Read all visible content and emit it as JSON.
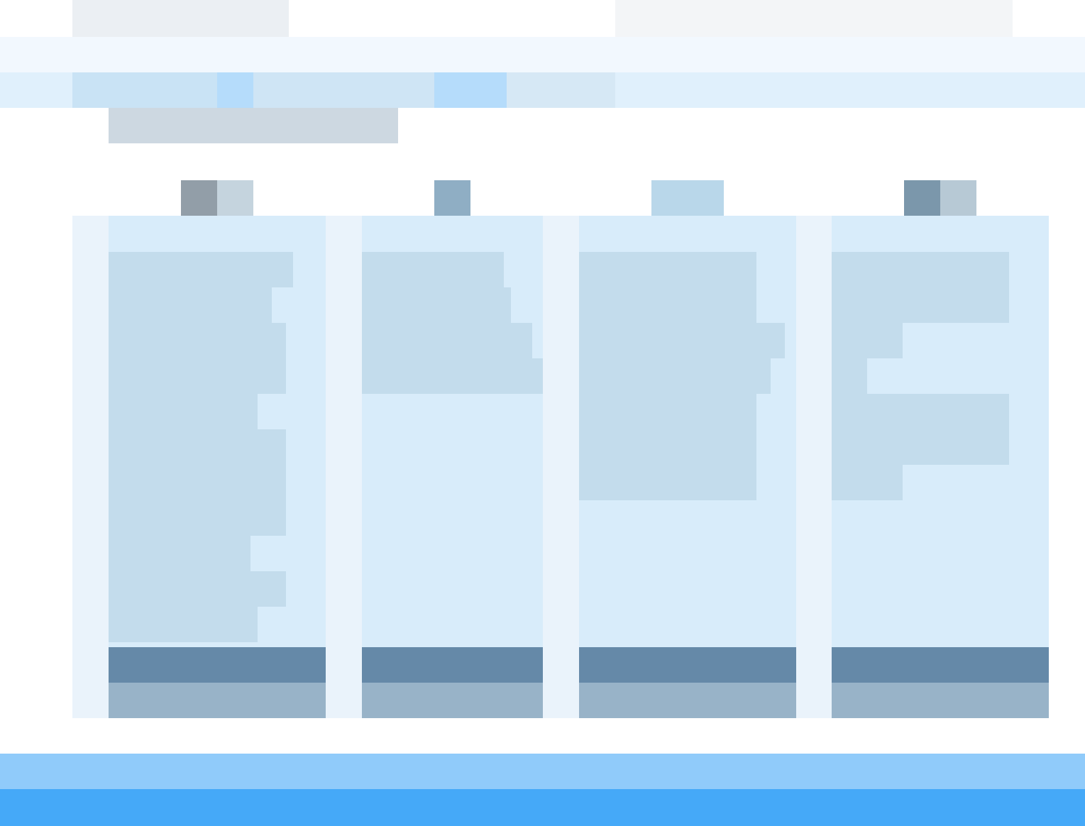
{
  "colors": {
    "nav_background": "#f2f8fe",
    "tab_strip_background": "#e0f0fc",
    "card_background": "#d8ecfa",
    "card_footer_primary": "#6589a8",
    "card_footer_secondary": "#98b3c8",
    "footer_band": "#90cbfa",
    "bottom_bar": "#45a9f8"
  },
  "cards": [
    {
      "icon": "document-icon",
      "primary_label": "",
      "secondary_label": ""
    },
    {
      "icon": "folder-icon",
      "primary_label": "",
      "secondary_label": ""
    },
    {
      "icon": "chart-icon",
      "primary_label": "",
      "secondary_label": ""
    }
  ]
}
